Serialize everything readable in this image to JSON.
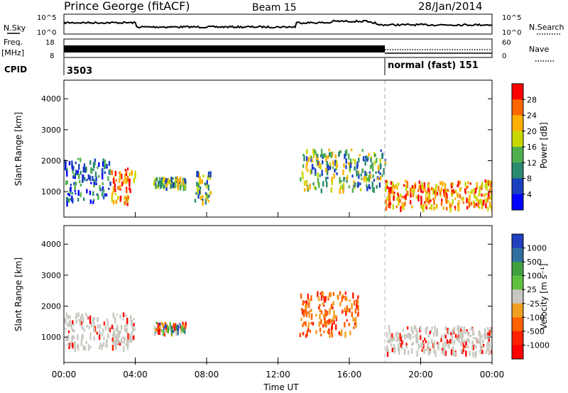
{
  "header": {
    "station": "Prince George (fitACF)",
    "beam": "Beam 15",
    "date": "28/Jan/2014"
  },
  "sky_panel": {
    "left_label": "N.Sky",
    "right_label": "N.Search",
    "tick_top": "10^5",
    "tick_bottom": "10^0",
    "tick_top_r": "10^5",
    "tick_bottom_r": "10^0"
  },
  "freq_panel": {
    "left_label_1": "Freq.",
    "left_label_2": "[MHz]",
    "right_label": "Nave",
    "tick_top": "18",
    "tick_bottom": "8",
    "tick_top_r": "60",
    "tick_bottom_r": "0"
  },
  "cpid_panel": {
    "label": "CPID",
    "mode_1": "3503",
    "mode_2": "normal (fast) 151"
  },
  "power_panel": {
    "ylabel": "Slant Range [km]",
    "cbar_label": "Power [dB]",
    "yticks": [
      "4000",
      "3000",
      "2000",
      "1000"
    ],
    "cbar_ticks": [
      "28",
      "24",
      "20",
      "16",
      "12",
      "8",
      "4"
    ],
    "cbar_colors": [
      "#ff0000",
      "#ff6600",
      "#ffb000",
      "#c8d800",
      "#50b050",
      "#2a8a70",
      "#1a40c0",
      "#0000ff"
    ]
  },
  "velocity_panel": {
    "ylabel": "Slant Range [km]",
    "cbar_label": "Velocity [m s⁻¹]",
    "yticks": [
      "4000",
      "3000",
      "2000",
      "1000"
    ],
    "cbar_ticks": [
      "1000",
      "500",
      "100",
      "25",
      "-25",
      "-100",
      "-500",
      "-1000"
    ],
    "cbar_colors": [
      "#2040c0",
      "#3070a0",
      "#40a040",
      "#60c040",
      "#c8c8c0",
      "#f0a020",
      "#ff6000",
      "#ff2000",
      "#ff0000"
    ]
  },
  "x_axis": {
    "label": "Time UT",
    "ticks": [
      "00:00",
      "04:00",
      "08:00",
      "12:00",
      "16:00",
      "20:00",
      "00:00"
    ]
  },
  "chart_data": {
    "type": "heatmap",
    "x_range_hours": [
      0,
      24
    ],
    "y_range_km": [
      180,
      4600
    ],
    "mode_change_hour": 18.0,
    "power_echoes": [
      {
        "t0": 0.0,
        "t1": 2.6,
        "r0": 700,
        "r1": 2100,
        "level": "low-mid"
      },
      {
        "t0": 2.6,
        "t1": 4.0,
        "r0": 700,
        "r1": 1800,
        "level": "high"
      },
      {
        "t0": 5.0,
        "t1": 6.8,
        "r0": 1200,
        "r1": 1500,
        "level": "mid"
      },
      {
        "t0": 7.3,
        "t1": 8.3,
        "r0": 700,
        "r1": 1700,
        "level": "mid"
      },
      {
        "t0": 13.2,
        "t1": 18.0,
        "r0": 1100,
        "r1": 2400,
        "level": "mid"
      },
      {
        "t0": 18.0,
        "t1": 24.0,
        "r0": 500,
        "r1": 1400,
        "level": "high"
      }
    ],
    "velocity_echoes": [
      {
        "t0": 0.0,
        "t1": 4.0,
        "r0": 700,
        "r1": 1800,
        "v": "near-zero"
      },
      {
        "t0": 5.0,
        "t1": 6.8,
        "r0": 1200,
        "r1": 1500,
        "v": "mixed"
      },
      {
        "t0": 13.2,
        "t1": 16.5,
        "r0": 1100,
        "r1": 2500,
        "v": "negative"
      },
      {
        "t0": 18.0,
        "t1": 24.0,
        "r0": 500,
        "r1": 1400,
        "v": "near-zero"
      }
    ]
  }
}
